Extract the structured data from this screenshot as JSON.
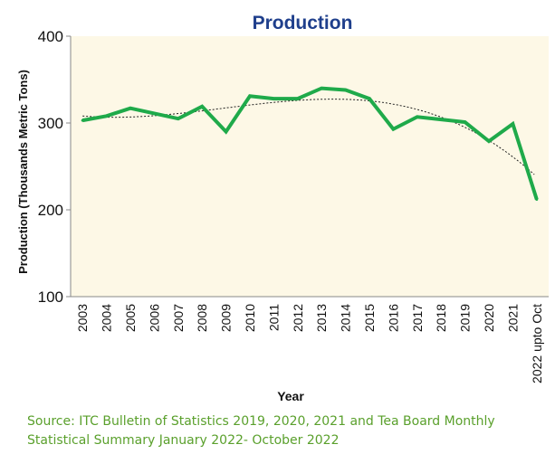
{
  "chart_data": {
    "type": "line",
    "title": "Production",
    "xlabel": "Year",
    "ylabel": "Production (Thousands Metric Tons)",
    "ylim": [
      100,
      400
    ],
    "yticks": [
      100,
      200,
      300,
      400
    ],
    "grid": false,
    "legend": "none",
    "categories": [
      "2003",
      "2004",
      "2005",
      "2006",
      "2007",
      "2008",
      "2009",
      "2010",
      "2011",
      "2012",
      "2013",
      "2014",
      "2015",
      "2016",
      "2017",
      "2018",
      "2019",
      "2020",
      "2021",
      "2022 upto Oct"
    ],
    "series": [
      {
        "values": [
          303,
          308,
          317,
          311,
          305,
          319,
          290,
          331,
          328,
          328,
          340,
          338,
          328,
          293,
          307,
          304,
          301,
          279,
          299,
          212
        ]
      }
    ],
    "trendline": {
      "kind": "polynomial",
      "style": "dotted"
    },
    "colors": {
      "series": "#1faa4a",
      "trend": "#222222",
      "plot_bg": "#fdf8e6",
      "title": "#1f3f8c"
    }
  },
  "source_note": "Source: ITC Bulletin of Statistics 2019, 2020, 2021 and Tea Board Monthly Statistical Summary  January 2022- October 2022"
}
